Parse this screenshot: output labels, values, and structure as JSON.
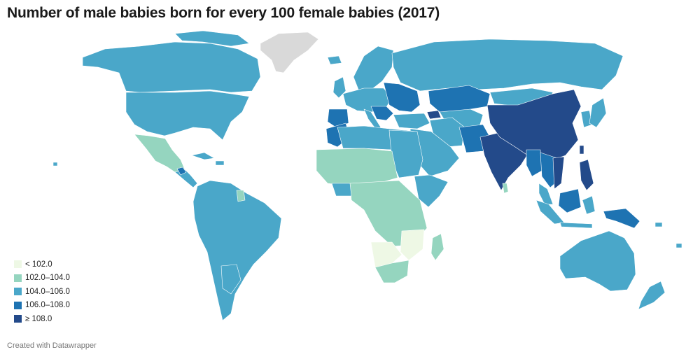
{
  "title": "Number of male babies born for every 100 female babies (2017)",
  "footer": "Created with Datawrapper",
  "colors": {
    "lt102": "#eef8e5",
    "b102_104": "#95d5bf",
    "b104_106": "#4aa7c9",
    "b106_108": "#1e73b2",
    "ge108": "#234a8a",
    "nodata": "#d9d9d9",
    "border": "#ffffff"
  },
  "legend": [
    {
      "label": "< 102.0",
      "color": "#eef8e5"
    },
    {
      "label": "102.0–104.0",
      "color": "#95d5bf"
    },
    {
      "label": "104.0–106.0",
      "color": "#4aa7c9"
    },
    {
      "label": "106.0–108.0",
      "color": "#1e73b2"
    },
    {
      "label": "≥ 108.0",
      "color": "#234a8a"
    }
  ]
}
